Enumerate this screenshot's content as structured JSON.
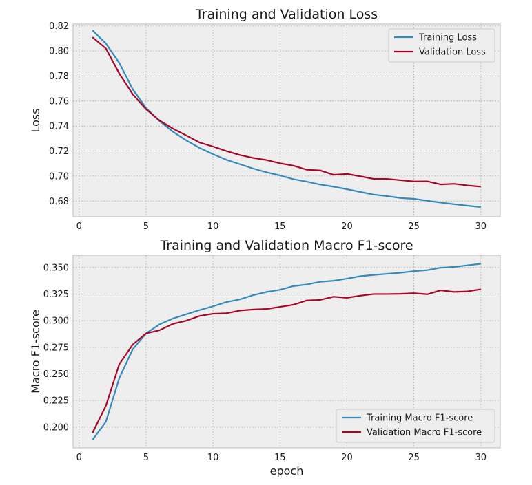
{
  "chart_data": [
    {
      "type": "line",
      "title": "Training and Validation Loss",
      "xlabel": "",
      "ylabel": "Loss",
      "xlim": [
        -0.45,
        31.45
      ],
      "ylim": [
        0.6675,
        0.8215
      ],
      "xticks": [
        0,
        5,
        10,
        15,
        20,
        25,
        30
      ],
      "yticks": [
        0.68,
        0.7,
        0.72,
        0.74,
        0.76,
        0.78,
        0.8,
        0.82
      ],
      "ytick_labels": [
        "0.68",
        "0.70",
        "0.72",
        "0.74",
        "0.76",
        "0.78",
        "0.80",
        "0.82"
      ],
      "grid": true,
      "legend_position": "top-right",
      "x": [
        1,
        2,
        3,
        4,
        5,
        6,
        7,
        8,
        9,
        10,
        11,
        12,
        13,
        14,
        15,
        16,
        17,
        18,
        19,
        20,
        21,
        22,
        23,
        24,
        25,
        26,
        27,
        28,
        29,
        30
      ],
      "series": [
        {
          "name": "Training Loss",
          "color": "#348ABD",
          "values": [
            0.8165,
            0.806,
            0.7905,
            0.7695,
            0.7545,
            0.744,
            0.7355,
            0.7285,
            0.7225,
            0.7175,
            0.713,
            0.7095,
            0.706,
            0.703,
            0.7005,
            0.6975,
            0.6955,
            0.6932,
            0.6915,
            0.6895,
            0.6873,
            0.6852,
            0.684,
            0.6825,
            0.6818,
            0.6803,
            0.6788,
            0.6775,
            0.6763,
            0.6752
          ]
        },
        {
          "name": "Validation Loss",
          "color": "#A60628",
          "values": [
            0.811,
            0.802,
            0.782,
            0.7655,
            0.7535,
            0.7445,
            0.738,
            0.7325,
            0.7268,
            0.7236,
            0.72,
            0.7168,
            0.7145,
            0.7128,
            0.7102,
            0.7083,
            0.7051,
            0.7045,
            0.701,
            0.7017,
            0.6998,
            0.6977,
            0.6977,
            0.6967,
            0.6957,
            0.6958,
            0.6933,
            0.6938,
            0.6925,
            0.6915
          ]
        }
      ]
    },
    {
      "type": "line",
      "title": "Training and Validation Macro F1-score",
      "xlabel": "epoch",
      "ylabel": "Macro F1-score",
      "xlim": [
        -0.45,
        31.45
      ],
      "ylim": [
        0.1805,
        0.3615
      ],
      "xticks": [
        0,
        5,
        10,
        15,
        20,
        25,
        30
      ],
      "yticks": [
        0.2,
        0.225,
        0.25,
        0.275,
        0.3,
        0.325,
        0.35
      ],
      "ytick_labels": [
        "0.200",
        "0.225",
        "0.250",
        "0.275",
        "0.300",
        "0.325",
        "0.350"
      ],
      "grid": true,
      "legend_position": "bottom-right",
      "x": [
        1,
        2,
        3,
        4,
        5,
        6,
        7,
        8,
        9,
        10,
        11,
        12,
        13,
        14,
        15,
        16,
        17,
        18,
        19,
        20,
        21,
        22,
        23,
        24,
        25,
        26,
        27,
        28,
        29,
        30
      ],
      "series": [
        {
          "name": "Training Macro F1-score",
          "color": "#348ABD",
          "values": [
            0.188,
            0.205,
            0.246,
            0.273,
            0.288,
            0.2965,
            0.302,
            0.306,
            0.31,
            0.3135,
            0.3175,
            0.32,
            0.324,
            0.327,
            0.329,
            0.3325,
            0.334,
            0.3365,
            0.3375,
            0.3395,
            0.3418,
            0.343,
            0.344,
            0.345,
            0.3465,
            0.3475,
            0.3498,
            0.3505,
            0.352,
            0.3535
          ]
        },
        {
          "name": "Validation Macro F1-score",
          "color": "#A60628",
          "values": [
            0.1945,
            0.22,
            0.259,
            0.2775,
            0.288,
            0.291,
            0.297,
            0.3,
            0.3045,
            0.3065,
            0.307,
            0.3095,
            0.3105,
            0.311,
            0.313,
            0.315,
            0.319,
            0.3195,
            0.3225,
            0.3215,
            0.3235,
            0.325,
            0.325,
            0.3252,
            0.3258,
            0.3248,
            0.3285,
            0.327,
            0.3275,
            0.3295
          ]
        }
      ]
    }
  ]
}
